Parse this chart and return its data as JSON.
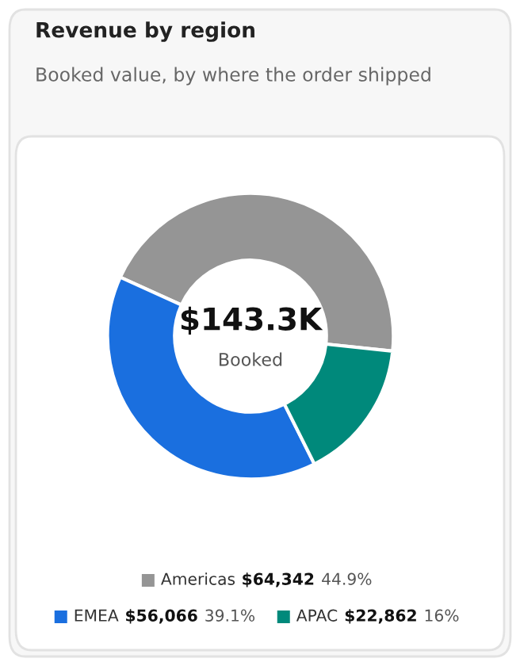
{
  "chart_data": {
    "type": "donut",
    "title": "Revenue by region",
    "subtitle": "Booked value, by where the order shipped",
    "categories": [
      "Americas",
      "EMEA",
      "APAC"
    ],
    "values": [
      64342,
      56066,
      22862
    ],
    "colors": [
      "#959595",
      "#1a6fdf",
      "#00897b"
    ],
    "value_labels": [
      "$64,342",
      "$56,066",
      "$22,862"
    ],
    "annotations": [
      "$143.3K",
      "Booked",
      "44.9%",
      "39.1%",
      "16%"
    ],
    "legend": "bottom"
  }
}
